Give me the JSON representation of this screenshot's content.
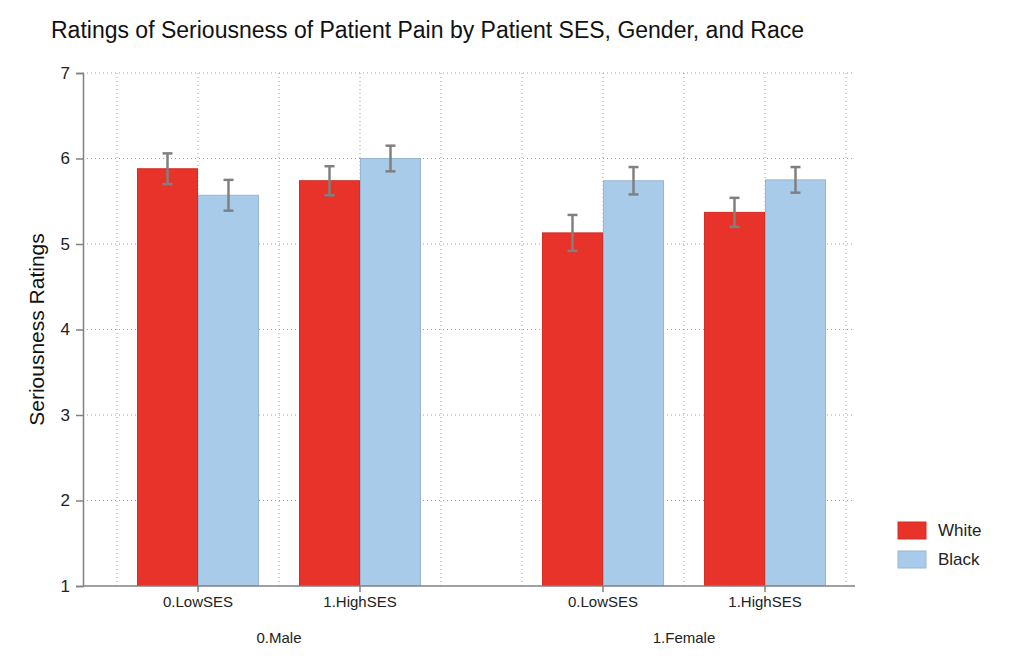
{
  "chart_data": {
    "type": "bar",
    "title": "Ratings of Seriousness of Patient Pain by Patient SES, Gender, and Race",
    "y_label": "Seriousness Ratings",
    "categories": [
      "0.LowSES",
      "1.HighSES",
      "0.LowSES",
      "1.HighSES"
    ],
    "category_groups": [
      "0.Male",
      "0.Male",
      "1.Female",
      "1.Female"
    ],
    "series": [
      {
        "name": "White",
        "color": "#e8332a",
        "values": [
          5.88,
          5.74,
          5.13,
          5.37
        ],
        "errors": [
          0.18,
          0.17,
          0.21,
          0.17
        ]
      },
      {
        "name": "Black",
        "color": "#a9cbea",
        "values": [
          5.57,
          6.0,
          5.74,
          5.75
        ],
        "errors": [
          0.18,
          0.15,
          0.16,
          0.15
        ]
      }
    ],
    "ylim": [
      1,
      7
    ],
    "yticks": [
      1,
      2,
      3,
      4,
      5,
      6,
      7
    ],
    "grid": true,
    "legend": "right"
  }
}
